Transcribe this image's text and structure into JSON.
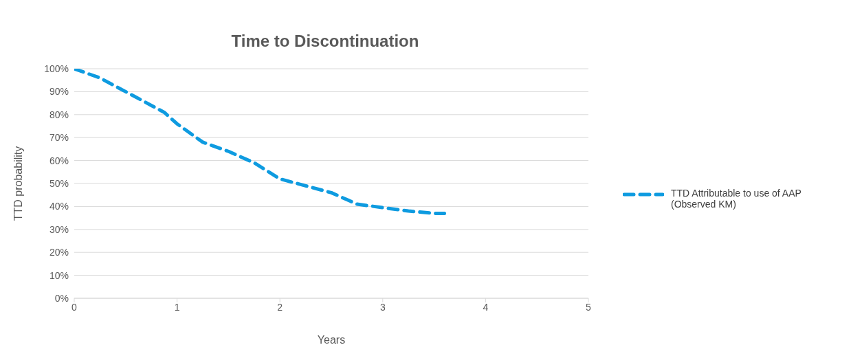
{
  "chart_data": {
    "type": "line",
    "title": "Time to Discontinuation",
    "xlabel": "Years",
    "ylabel": "TTD probability",
    "x": [
      0,
      0.25,
      0.5,
      0.75,
      0.875,
      1,
      1.25,
      1.5,
      1.75,
      2,
      2.25,
      2.5,
      2.75,
      3,
      3.25,
      3.5,
      3.6
    ],
    "series": [
      {
        "name": "TTD Attributable to use of AAP (Observed KM)",
        "color": "#0e9be0",
        "values": [
          100,
          96,
          90,
          84,
          81,
          76,
          68,
          64,
          59,
          52,
          49,
          46,
          41,
          39.5,
          38,
          37,
          37
        ]
      }
    ],
    "xlim": [
      0,
      5
    ],
    "xticks": [
      0,
      1,
      2,
      3,
      4,
      5
    ],
    "ylim": [
      0,
      100
    ],
    "yticks": [
      {
        "value": 0,
        "label": "0%"
      },
      {
        "value": 10,
        "label": "10%"
      },
      {
        "value": 20,
        "label": "20%"
      },
      {
        "value": 30,
        "label": "30%"
      },
      {
        "value": 40,
        "label": "40%"
      },
      {
        "value": 50,
        "label": "50%"
      },
      {
        "value": 60,
        "label": "60%"
      },
      {
        "value": 70,
        "label": "70%"
      },
      {
        "value": 80,
        "label": "80%"
      },
      {
        "value": 90,
        "label": "90%"
      },
      {
        "value": 100,
        "label": "100%"
      }
    ],
    "grid": "y",
    "legend": "right",
    "line_style": "dashed",
    "marker": "none"
  }
}
